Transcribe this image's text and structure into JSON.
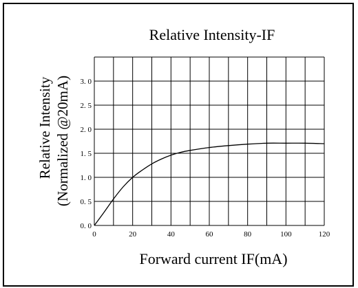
{
  "chart_data": {
    "type": "line",
    "title": "Relative Intensity-IF",
    "xlabel": "Forward current IF(mA)",
    "ylabel": [
      "Relative  Intensity",
      "(Normalized @20mA)"
    ],
    "xlim": [
      0,
      120
    ],
    "ylim": [
      0,
      3.5
    ],
    "x_ticks": [
      "0",
      "20",
      "40",
      "60",
      "80",
      "100",
      "120"
    ],
    "y_ticks": [
      "0. 0",
      "0. 5",
      "1. 0",
      "1. 5",
      "2. 0",
      "2. 5",
      "3. 0"
    ],
    "y_tick_values": [
      0,
      0.5,
      1.0,
      1.5,
      2.0,
      2.5,
      3.0
    ],
    "x_tick_values": [
      0,
      20,
      40,
      60,
      80,
      100,
      120
    ],
    "x_grid_step": 10,
    "grid": true,
    "series": [
      {
        "x": [
          0,
          5,
          10,
          15,
          20,
          25,
          30,
          35,
          40,
          45,
          50,
          60,
          70,
          80,
          90,
          100,
          110,
          120
        ],
        "y": [
          0,
          0.27,
          0.55,
          0.8,
          1.0,
          1.15,
          1.28,
          1.38,
          1.46,
          1.52,
          1.56,
          1.62,
          1.66,
          1.69,
          1.71,
          1.71,
          1.71,
          1.7
        ]
      }
    ],
    "line_color": "#000000"
  }
}
